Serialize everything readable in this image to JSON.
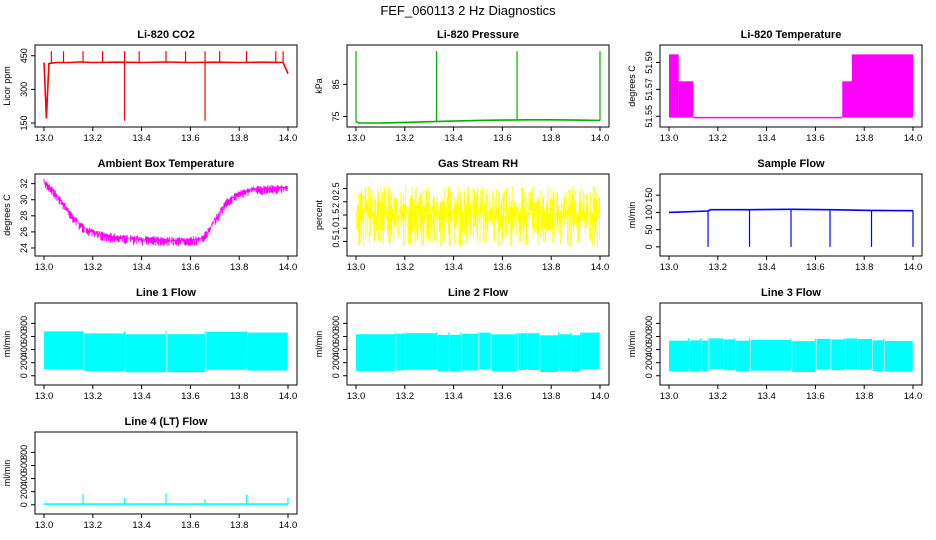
{
  "figure_title": "FEF_060113  2 Hz Diagnostics",
  "chart_data": [
    {
      "type": "line",
      "title": "Li-820 CO2",
      "ylabel": "Licor ppm",
      "color": "#ff0000",
      "xlim": [
        13.0,
        14.0
      ],
      "ylim": [
        150,
        480
      ],
      "xticks": [
        "13.0",
        "13.2",
        "13.4",
        "13.6",
        "13.8",
        "14.0"
      ],
      "yticks": [
        {
          "value": 150,
          "label": "150"
        },
        {
          "value": 300,
          "label": "300"
        },
        {
          "value": 450,
          "label": "450"
        }
      ],
      "series": [
        {
          "x": [
            13.0,
            13.01,
            13.02,
            13.05,
            13.1,
            13.15,
            13.2,
            13.3,
            13.4,
            13.5,
            13.6,
            13.7,
            13.8,
            13.9,
            13.98,
            14.0
          ],
          "values": [
            420,
            170,
            415,
            420,
            420,
            422,
            420,
            421,
            420,
            422,
            420,
            421,
            420,
            421,
            420,
            370
          ]
        }
      ],
      "spikes_up": [
        13.03,
        13.08,
        13.16,
        13.24,
        13.33,
        13.39,
        13.5,
        13.58,
        13.66,
        13.72,
        13.83,
        13.95,
        13.98
      ],
      "spikes_down": [
        13.33,
        13.66
      ]
    },
    {
      "type": "line",
      "title": "Li-820 Pressure",
      "ylabel": "kPa",
      "color": "#00b000",
      "xlim": [
        13.0,
        14.0
      ],
      "ylim": [
        73,
        96
      ],
      "xticks": [
        "13.0",
        "13.2",
        "13.4",
        "13.6",
        "13.8",
        "14.0"
      ],
      "yticks": [
        {
          "value": 75,
          "label": "75"
        },
        {
          "value": 85,
          "label": "85"
        }
      ],
      "series": [
        {
          "x": [
            13.0,
            13.01,
            13.1,
            13.2,
            13.3,
            13.4,
            13.5,
            13.6,
            13.7,
            13.8,
            13.9,
            14.0
          ],
          "values": [
            73.5,
            73.0,
            73.0,
            73.2,
            73.4,
            73.6,
            73.8,
            73.9,
            74.0,
            74.0,
            73.9,
            73.8
          ]
        }
      ],
      "spikes_up": [
        13.0,
        13.33,
        13.66,
        14.0
      ]
    },
    {
      "type": "line",
      "title": "Li-820 Temperature",
      "ylabel": "degrees C",
      "color": "#ff00ff",
      "xlim": [
        13.0,
        14.0
      ],
      "ylim": [
        51.545,
        51.6
      ],
      "xticks": [
        "13.0",
        "13.2",
        "13.4",
        "13.6",
        "13.8",
        "14.0"
      ],
      "yticks": [
        {
          "value": 51.55,
          "label": "51.55"
        },
        {
          "value": 51.57,
          "label": "51.57"
        },
        {
          "value": 51.59,
          "label": "51.59"
        }
      ],
      "segments": [
        {
          "x": [
            13.0,
            13.04
          ],
          "low": 51.549,
          "high": 51.596
        },
        {
          "x": [
            13.04,
            13.1
          ],
          "low": 51.549,
          "high": 51.576
        },
        {
          "x": [
            13.1,
            13.71
          ],
          "low": 51.549,
          "high": 51.549
        },
        {
          "x": [
            13.71,
            13.75
          ],
          "low": 51.549,
          "high": 51.576
        },
        {
          "x": [
            13.75,
            14.0
          ],
          "low": 51.549,
          "high": 51.596
        }
      ]
    },
    {
      "type": "line",
      "title": "Ambient Box Temperature",
      "ylabel": "degrees C",
      "color": "#ff00ff",
      "xlim": [
        13.0,
        14.0
      ],
      "ylim": [
        23.5,
        32.7
      ],
      "xticks": [
        "13.0",
        "13.2",
        "13.4",
        "13.6",
        "13.8",
        "14.0"
      ],
      "yticks": [
        {
          "value": 24,
          "label": "24"
        },
        {
          "value": 26,
          "label": "26"
        },
        {
          "value": 28,
          "label": "28"
        },
        {
          "value": 30,
          "label": "30"
        },
        {
          "value": 32,
          "label": "32"
        }
      ],
      "series": [
        {
          "x": [
            13.0,
            13.03,
            13.08,
            13.12,
            13.16,
            13.2,
            13.28,
            13.4,
            13.5,
            13.6,
            13.65,
            13.67,
            13.7,
            13.75,
            13.8,
            13.85,
            13.9,
            14.0
          ],
          "values": [
            32.2,
            31.4,
            29.5,
            27.8,
            26.6,
            25.9,
            25.4,
            25.1,
            25.0,
            25.0,
            25.2,
            26.0,
            27.5,
            29.8,
            30.8,
            31.3,
            31.4,
            31.5
          ]
        }
      ],
      "noise": 0.8
    },
    {
      "type": "line",
      "title": "Gas Stream RH",
      "ylabel": "percent",
      "color": "#ffff00",
      "xlim": [
        13.0,
        14.0
      ],
      "ylim": [
        0.1,
        2.9
      ],
      "xticks": [
        "13.0",
        "13.2",
        "13.4",
        "13.6",
        "13.8",
        "14.0"
      ],
      "yticks": [
        {
          "value": 0.5,
          "label": "0.5"
        },
        {
          "value": 1.0,
          "label": "1.0"
        },
        {
          "value": 1.5,
          "label": "1.5"
        },
        {
          "value": 2.0,
          "label": "2.0"
        },
        {
          "value": 2.5,
          "label": "2.5"
        }
      ],
      "band": {
        "low": 0.3,
        "high": 2.6
      }
    },
    {
      "type": "line",
      "title": "Sample Flow",
      "ylabel": "ml/min",
      "color": "#0000ff",
      "xlim": [
        13.0,
        14.0
      ],
      "ylim": [
        -15,
        200
      ],
      "xticks": [
        "13.0",
        "13.2",
        "13.4",
        "13.6",
        "13.8",
        "14.0"
      ],
      "yticks": [
        {
          "value": 0,
          "label": "0"
        },
        {
          "value": 50,
          "label": "50"
        },
        {
          "value": 100,
          "label": "100"
        },
        {
          "value": 150,
          "label": "150"
        }
      ],
      "series": [
        {
          "x": [
            13.0,
            13.16,
            13.17,
            13.33,
            13.5,
            13.66,
            13.83,
            14.0
          ],
          "values": [
            100,
            104,
            108,
            108,
            109,
            108,
            106,
            105
          ]
        }
      ],
      "spikes_down": [
        13.16,
        13.33,
        13.5,
        13.66,
        13.83,
        14.0
      ],
      "spike_value": 0
    },
    {
      "type": "area",
      "title": "Line 1 Flow",
      "ylabel": "ml/min",
      "color": "#00ffff",
      "xlim": [
        13.0,
        14.0
      ],
      "ylim": [
        -80,
        1050
      ],
      "xticks": [
        "13.0",
        "13.2",
        "13.4",
        "13.6",
        "13.8",
        "14.0"
      ],
      "yticks": [
        {
          "value": 0,
          "label": "0"
        },
        {
          "value": 200,
          "label": "200"
        },
        {
          "value": 400,
          "label": "400"
        },
        {
          "value": 600,
          "label": "600"
        },
        {
          "value": 800,
          "label": "800"
        }
      ],
      "band": {
        "low": 100,
        "high": 680
      },
      "gaps": [
        13.16,
        13.33,
        13.5,
        13.66,
        13.83
      ]
    },
    {
      "type": "area",
      "title": "Line 2 Flow",
      "ylabel": "ml/min",
      "color": "#00ffff",
      "xlim": [
        13.0,
        14.0
      ],
      "ylim": [
        -80,
        1050
      ],
      "xticks": [
        "13.0",
        "13.2",
        "13.4",
        "13.6",
        "13.8",
        "14.0"
      ],
      "yticks": [
        {
          "value": 0,
          "label": "0"
        },
        {
          "value": 200,
          "label": "200"
        },
        {
          "value": 400,
          "label": "400"
        },
        {
          "value": 600,
          "label": "600"
        },
        {
          "value": 800,
          "label": "800"
        }
      ],
      "band": {
        "low": 100,
        "high": 660
      },
      "gaps": [
        13.16,
        13.2,
        13.33,
        13.38,
        13.43,
        13.5,
        13.55,
        13.66,
        13.7,
        13.75,
        13.83,
        13.88,
        13.92
      ]
    },
    {
      "type": "area",
      "title": "Line 3 Flow",
      "ylabel": "ml/min",
      "color": "#00ffff",
      "xlim": [
        13.0,
        14.0
      ],
      "ylim": [
        -80,
        1050
      ],
      "xticks": [
        "13.0",
        "13.2",
        "13.4",
        "13.6",
        "13.8",
        "14.0"
      ],
      "yticks": [
        {
          "value": 0,
          "label": "0"
        },
        {
          "value": 200,
          "label": "200"
        },
        {
          "value": 400,
          "label": "400"
        },
        {
          "value": 600,
          "label": "600"
        },
        {
          "value": 800,
          "label": "800"
        }
      ],
      "band": {
        "low": 100,
        "high": 570
      },
      "gaps": [
        13.08,
        13.13,
        13.16,
        13.22,
        13.27,
        13.33,
        13.5,
        13.6,
        13.66,
        13.72,
        13.77,
        13.83,
        13.88
      ]
    },
    {
      "type": "line",
      "title": "Line 4 (LT) Flow",
      "ylabel": "ml/min",
      "color": "#00ffff",
      "xlim": [
        13.0,
        14.0
      ],
      "ylim": [
        -80,
        1050
      ],
      "xticks": [
        "13.0",
        "13.2",
        "13.4",
        "13.6",
        "13.8",
        "14.0"
      ],
      "yticks": [
        {
          "value": 0,
          "label": "0"
        },
        {
          "value": 200,
          "label": "200"
        },
        {
          "value": 400,
          "label": "400"
        },
        {
          "value": 600,
          "label": "600"
        },
        {
          "value": 800,
          "label": "800"
        }
      ],
      "series": [
        {
          "x": [
            13.0,
            14.0
          ],
          "values": [
            10,
            10
          ]
        }
      ],
      "spikes_up": [
        13.16,
        13.33,
        13.5,
        13.66,
        13.83,
        14.0
      ],
      "spike_values": [
        160,
        100,
        170,
        90,
        150,
        110
      ]
    }
  ]
}
